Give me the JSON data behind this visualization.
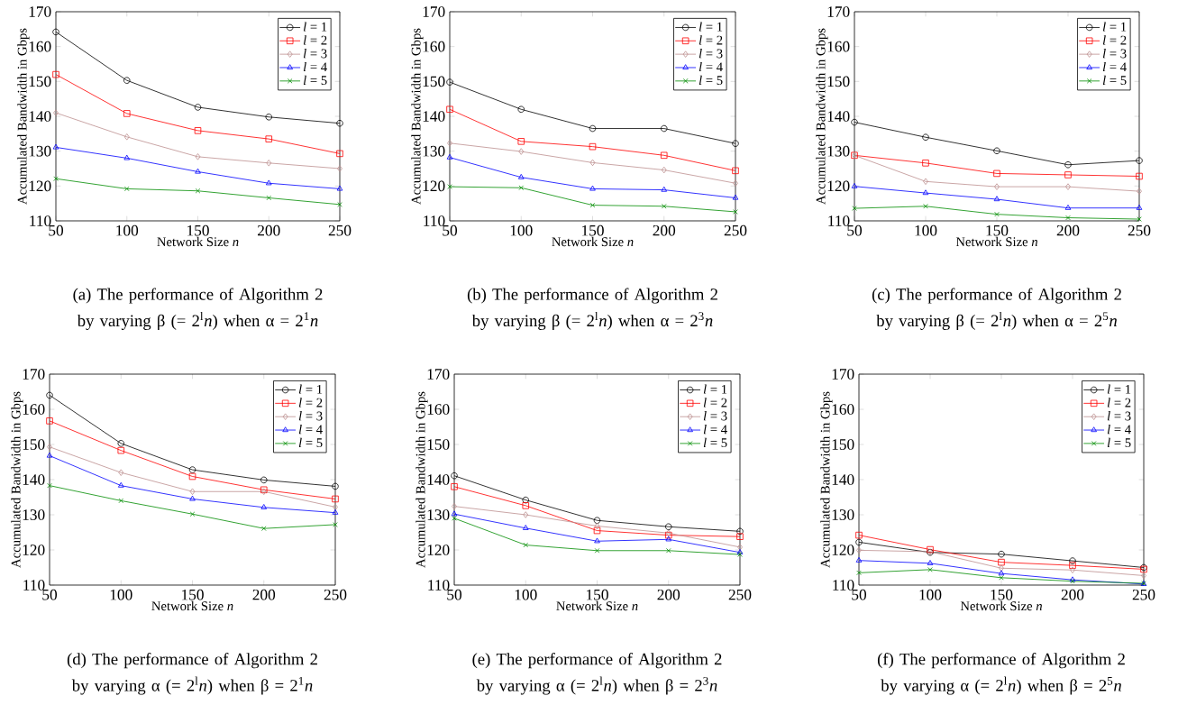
{
  "chart_data": [
    {
      "type": "line",
      "xlabel": "Network Size *n*",
      "ylabel": "Accumulated Bandwidth in Gbps",
      "x": [
        50,
        100,
        150,
        200,
        250
      ],
      "xlim": [
        50,
        250
      ],
      "ylim": [
        110,
        170
      ],
      "xticks": [
        50,
        100,
        150,
        200,
        250
      ],
      "yticks": [
        110,
        120,
        130,
        140,
        150,
        160,
        170
      ],
      "legend": "top right",
      "line_style": "solid",
      "annotations": [
        "(a) The performance of Algorithm 2 by varying β (= 2$^{l}$*n*) when α = 2$^{1}$*n*"
      ],
      "series": [
        {
          "name": "*l* = 1",
          "color": "#000000",
          "marker": "circle",
          "values": [
            164.2,
            150.3,
            142.6,
            139.8,
            138.0
          ]
        },
        {
          "name": "*l* = 2",
          "color": "#ff0000",
          "marker": "square",
          "values": [
            152.0,
            140.8,
            135.9,
            133.5,
            129.3
          ]
        },
        {
          "name": "*l* = 3",
          "color": "#bc8f8f",
          "marker": "diamond",
          "values": [
            141.0,
            134.1,
            128.4,
            126.6,
            125.0
          ]
        },
        {
          "name": "*l* = 4",
          "color": "#0000ff",
          "marker": "triangle",
          "values": [
            131.1,
            128.0,
            124.1,
            120.8,
            119.2
          ]
        },
        {
          "name": "*l* = 5",
          "color": "#008b00",
          "marker": "cross",
          "values": [
            122.1,
            119.2,
            118.6,
            116.6,
            114.7
          ]
        }
      ]
    },
    {
      "type": "line",
      "xlabel": "Network Size *n*",
      "ylabel": "Accumulated Bandwidth in Gbps",
      "x": [
        50,
        100,
        150,
        200,
        250
      ],
      "xlim": [
        50,
        250
      ],
      "ylim": [
        110,
        170
      ],
      "xticks": [
        50,
        100,
        150,
        200,
        250
      ],
      "yticks": [
        110,
        120,
        130,
        140,
        150,
        160,
        170
      ],
      "legend": "top right",
      "line_style": "solid",
      "annotations": [
        "(b) The performance of Algorithm 2 by varying β (= 2$^{l}$*n*) when α = 2$^{3}$*n*"
      ],
      "series": [
        {
          "name": "*l* = 1",
          "color": "#000000",
          "marker": "circle",
          "values": [
            149.8,
            142.0,
            136.5,
            136.5,
            132.2
          ]
        },
        {
          "name": "*l* = 2",
          "color": "#ff0000",
          "marker": "square",
          "values": [
            142.0,
            132.8,
            131.3,
            128.8,
            124.4
          ]
        },
        {
          "name": "*l* = 3",
          "color": "#bc8f8f",
          "marker": "diamond",
          "values": [
            132.3,
            129.9,
            126.7,
            124.6,
            120.8
          ]
        },
        {
          "name": "*l* = 4",
          "color": "#0000ff",
          "marker": "triangle",
          "values": [
            128.2,
            122.5,
            119.2,
            118.9,
            116.6
          ]
        },
        {
          "name": "*l* = 5",
          "color": "#008b00",
          "marker": "cross",
          "values": [
            119.8,
            119.5,
            114.5,
            114.2,
            112.6
          ]
        }
      ]
    },
    {
      "type": "line",
      "xlabel": "Network Size *n*",
      "ylabel": "Accumulated Bandwidth in Gbps",
      "x": [
        50,
        100,
        150,
        200,
        250
      ],
      "xlim": [
        50,
        250
      ],
      "ylim": [
        110,
        170
      ],
      "xticks": [
        50,
        100,
        150,
        200,
        250
      ],
      "yticks": [
        110,
        120,
        130,
        140,
        150,
        160,
        170
      ],
      "legend": "top right",
      "line_style": "solid",
      "annotations": [
        "(c) The performance of Algorithm 2 by varying β (= 2$^{l}$*n*) when α = 2$^{5}$*n*"
      ],
      "series": [
        {
          "name": "*l* = 1",
          "color": "#000000",
          "marker": "circle",
          "values": [
            138.3,
            134.0,
            130.1,
            126.1,
            127.3
          ]
        },
        {
          "name": "*l* = 2",
          "color": "#ff0000",
          "marker": "square",
          "values": [
            128.8,
            126.6,
            123.6,
            123.2,
            122.8
          ]
        },
        {
          "name": "*l* = 3",
          "color": "#bc8f8f",
          "marker": "diamond",
          "values": [
            128.8,
            121.3,
            119.8,
            119.8,
            118.5
          ]
        },
        {
          "name": "*l* = 4",
          "color": "#0000ff",
          "marker": "triangle",
          "values": [
            119.9,
            118.0,
            116.2,
            113.7,
            113.7
          ]
        },
        {
          "name": "*l* = 5",
          "color": "#008b00",
          "marker": "cross",
          "values": [
            113.6,
            114.2,
            111.9,
            110.9,
            110.5
          ]
        }
      ]
    },
    {
      "type": "line",
      "xlabel": "Network Size *n*",
      "ylabel": "Accumulated Bandwidth in Gbps",
      "x": [
        50,
        100,
        150,
        200,
        250
      ],
      "xlim": [
        50,
        250
      ],
      "ylim": [
        110,
        170
      ],
      "xticks": [
        50,
        100,
        150,
        200,
        250
      ],
      "yticks": [
        110,
        120,
        130,
        140,
        150,
        160,
        170
      ],
      "legend": "top right",
      "line_style": "solid",
      "annotations": [
        "(d) The performance of Algorithm 2 by varying α (= 2$^{l}$*n*) when β = 2$^{1}$*n*"
      ],
      "series": [
        {
          "name": "*l* = 1",
          "color": "#000000",
          "marker": "circle",
          "values": [
            164.0,
            150.3,
            142.8,
            139.9,
            138.1
          ]
        },
        {
          "name": "*l* = 2",
          "color": "#ff0000",
          "marker": "square",
          "values": [
            156.7,
            148.3,
            140.9,
            137.1,
            134.5
          ]
        },
        {
          "name": "*l* = 3",
          "color": "#bc8f8f",
          "marker": "diamond",
          "values": [
            149.3,
            142.0,
            136.6,
            136.6,
            132.2
          ]
        },
        {
          "name": "*l* = 4",
          "color": "#0000ff",
          "marker": "triangle",
          "values": [
            146.8,
            138.3,
            134.5,
            132.1,
            130.6
          ]
        },
        {
          "name": "*l* = 5",
          "color": "#008b00",
          "marker": "cross",
          "values": [
            138.3,
            134.0,
            130.2,
            126.1,
            127.2
          ]
        }
      ]
    },
    {
      "type": "line",
      "xlabel": "Network Size *n*",
      "ylabel": "Accumulated Bandwidth in Gbps",
      "x": [
        50,
        100,
        150,
        200,
        250
      ],
      "xlim": [
        50,
        250
      ],
      "ylim": [
        110,
        170
      ],
      "xticks": [
        50,
        100,
        150,
        200,
        250
      ],
      "yticks": [
        110,
        120,
        130,
        140,
        150,
        160,
        170
      ],
      "legend": "top right",
      "line_style": "solid",
      "annotations": [
        "(e) The performance of Algorithm 2 by varying α (= 2$^{l}$*n*) when β = 2$^{3}$*n*"
      ],
      "series": [
        {
          "name": "*l* = 1",
          "color": "#000000",
          "marker": "circle",
          "values": [
            141.1,
            134.2,
            128.4,
            126.6,
            125.3
          ]
        },
        {
          "name": "*l* = 2",
          "color": "#ff0000",
          "marker": "square",
          "values": [
            138.0,
            132.6,
            125.5,
            124.2,
            123.8
          ]
        },
        {
          "name": "*l* = 3",
          "color": "#bc8f8f",
          "marker": "diamond",
          "values": [
            132.4,
            130.0,
            126.8,
            124.8,
            120.8
          ]
        },
        {
          "name": "*l* = 4",
          "color": "#0000ff",
          "marker": "triangle",
          "values": [
            130.2,
            126.2,
            122.5,
            123.0,
            119.3
          ]
        },
        {
          "name": "*l* = 5",
          "color": "#008b00",
          "marker": "cross",
          "values": [
            129.0,
            121.4,
            119.8,
            119.8,
            118.7
          ]
        }
      ]
    },
    {
      "type": "line",
      "xlabel": "Network Size *n*",
      "ylabel": "Accumulated Bandwidth in Gbps",
      "x": [
        50,
        100,
        150,
        200,
        250
      ],
      "xlim": [
        50,
        250
      ],
      "ylim": [
        110,
        170
      ],
      "xticks": [
        50,
        100,
        150,
        200,
        250
      ],
      "yticks": [
        110,
        120,
        130,
        140,
        150,
        160,
        170
      ],
      "legend": "top right",
      "line_style": "solid",
      "annotations": [
        "(f) The performance of Algorithm 2 by varying α (= 2$^{l}$*n*) when β = 2$^{5}$*n*"
      ],
      "series": [
        {
          "name": "*l* = 1",
          "color": "#000000",
          "marker": "circle",
          "values": [
            122.2,
            119.3,
            118.8,
            116.9,
            115.0
          ]
        },
        {
          "name": "*l* = 2",
          "color": "#ff0000",
          "marker": "square",
          "values": [
            124.2,
            120.1,
            116.5,
            115.6,
            114.5
          ]
        },
        {
          "name": "*l* = 3",
          "color": "#bc8f8f",
          "marker": "diamond",
          "values": [
            119.9,
            119.5,
            114.8,
            114.3,
            112.7
          ]
        },
        {
          "name": "*l* = 4",
          "color": "#0000ff",
          "marker": "triangle",
          "values": [
            117.0,
            116.2,
            113.3,
            111.5,
            110.3
          ]
        },
        {
          "name": "*l* = 5",
          "color": "#008b00",
          "marker": "cross",
          "values": [
            113.5,
            114.4,
            112.1,
            111.1,
            110.5
          ]
        }
      ]
    }
  ]
}
